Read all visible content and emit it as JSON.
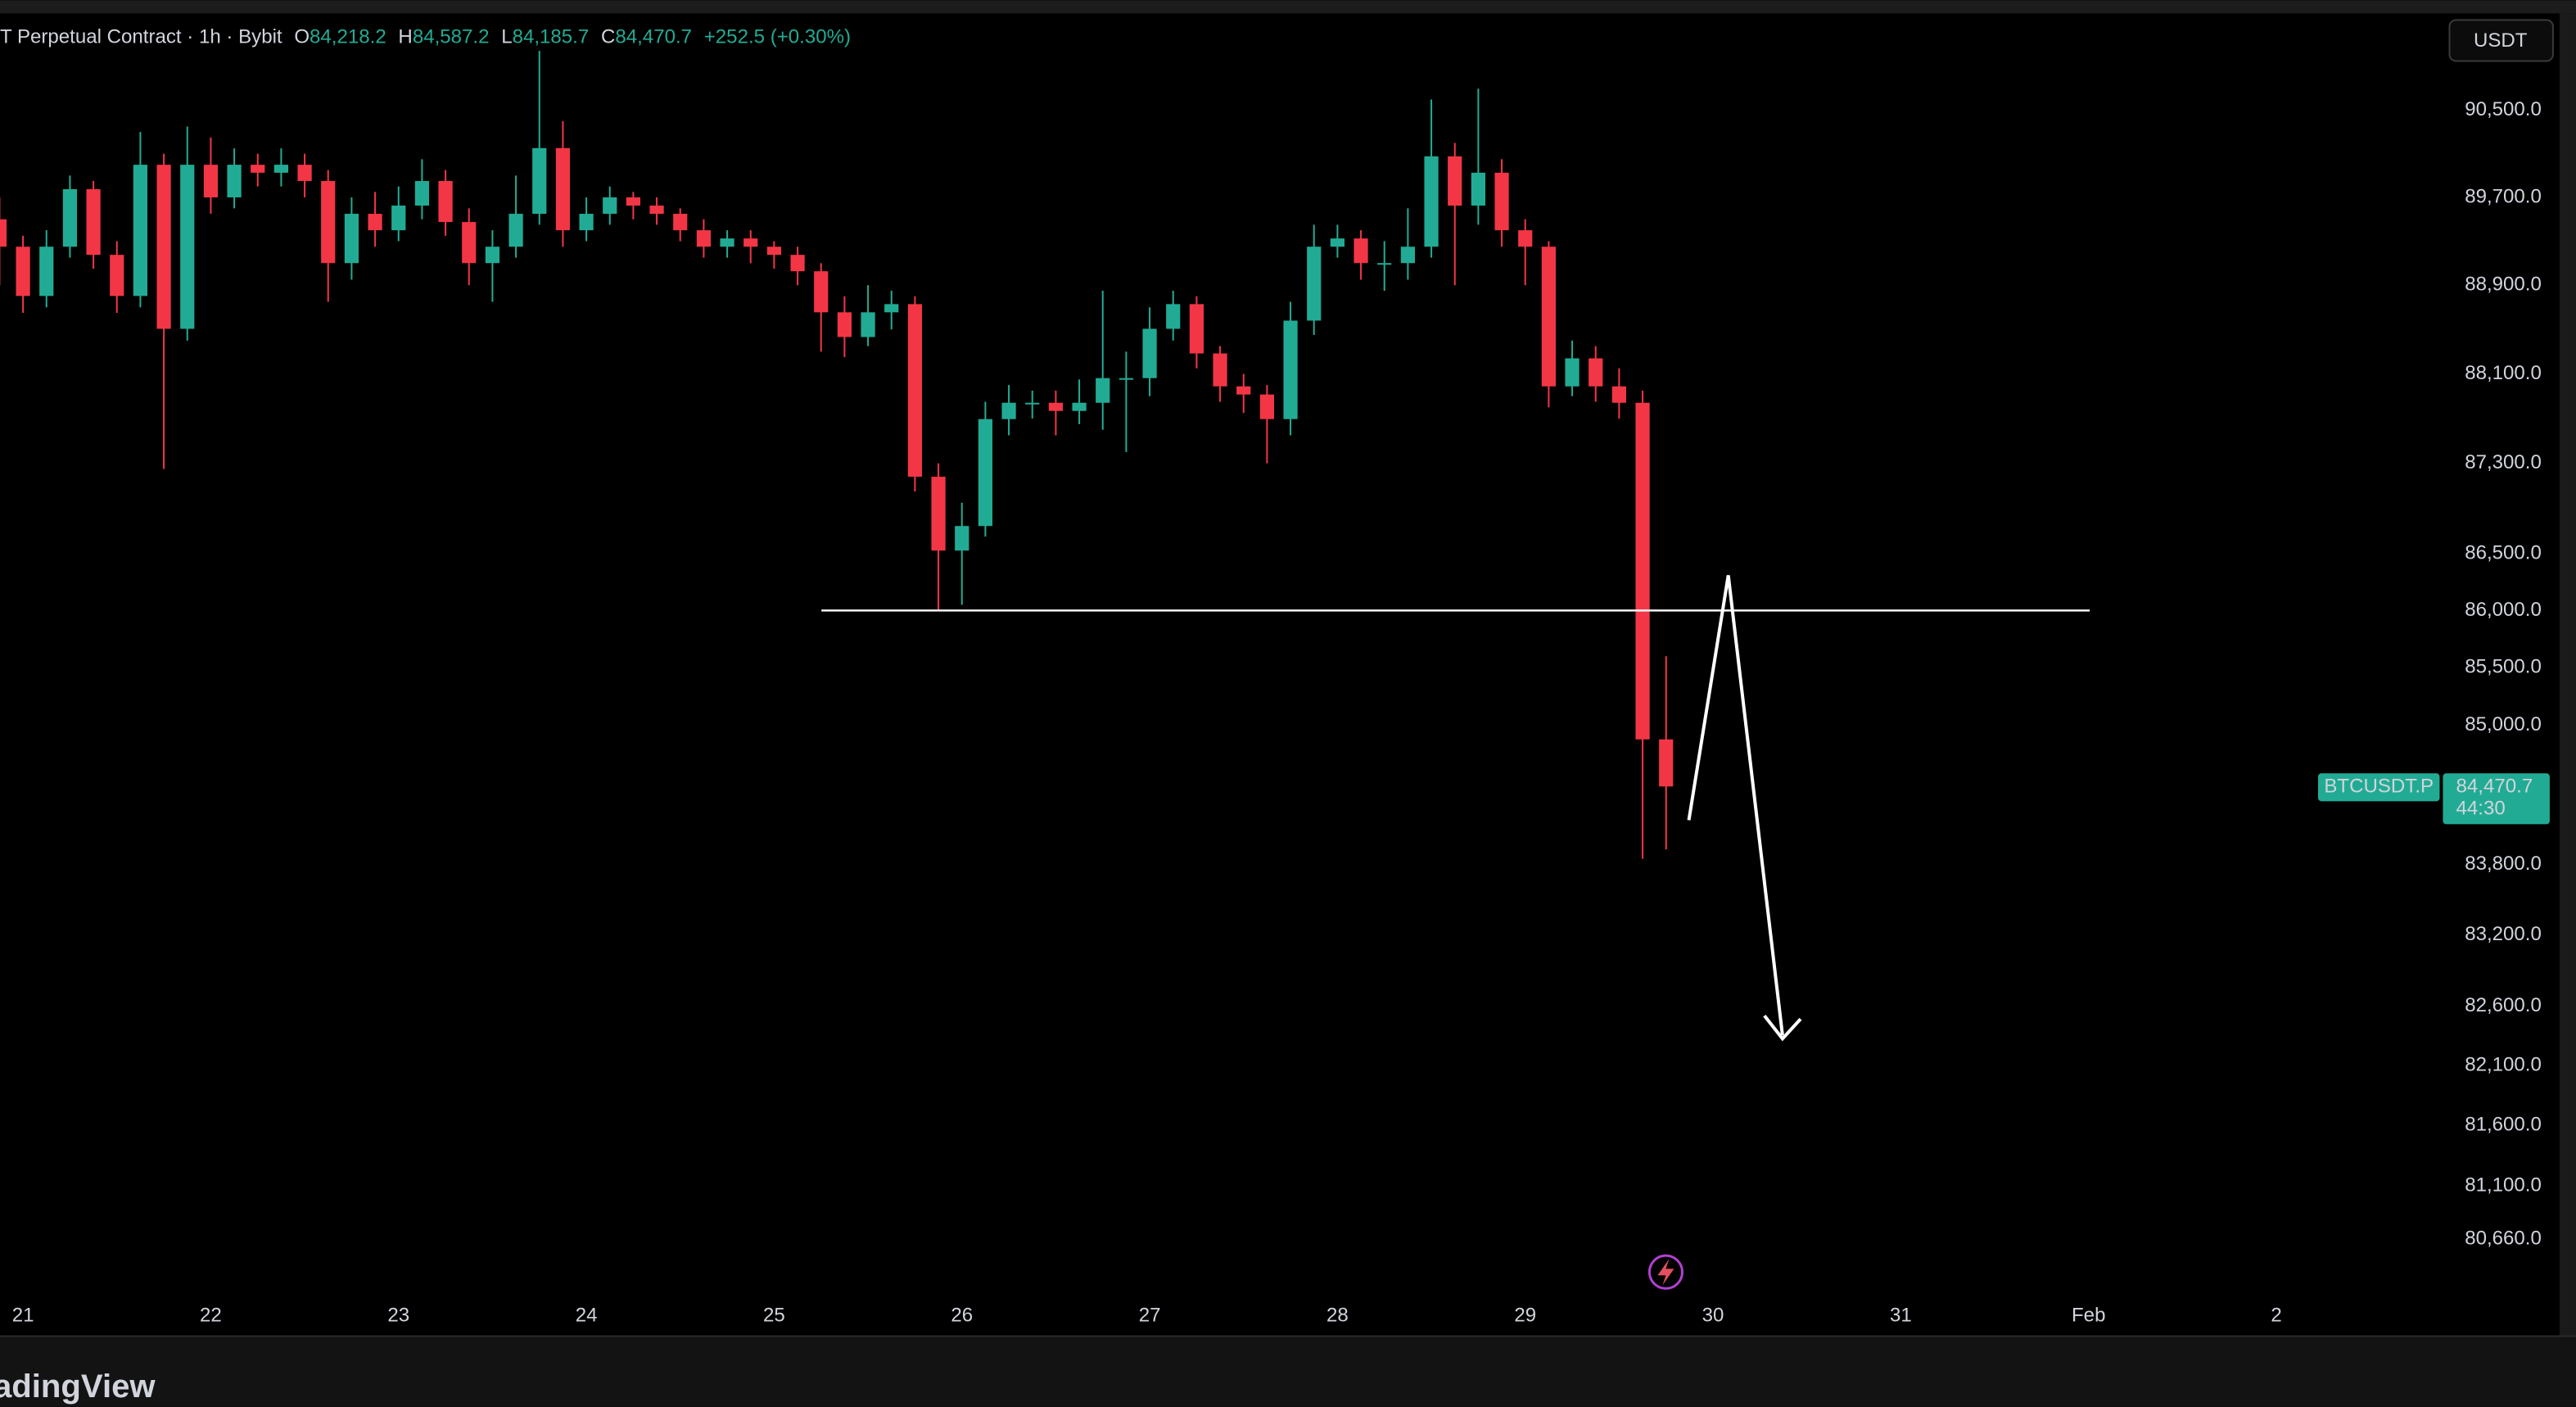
{
  "header": {
    "symbol": "T Perpetual Contract · 1h · Bybit",
    "o_label": "O",
    "o_value": "84,218.2",
    "h_label": "H",
    "h_value": "84,587.2",
    "l_label": "L",
    "l_value": "84,185.7",
    "c_label": "C",
    "c_value": "84,470.7",
    "change": "+252.5 (+0.30%)"
  },
  "toolbar": {
    "currency": "USDT"
  },
  "price_tag": {
    "symbol": "BTCUSDT.P",
    "price": "84,470.7",
    "countdown": "44:30"
  },
  "brand": "adingView",
  "chart_data": {
    "type": "candlestick",
    "log_scale": true,
    "up_color": "#22ab94",
    "down_color": "#f23645",
    "x": [
      -3,
      0,
      3,
      6,
      9,
      12,
      15,
      18,
      21,
      24,
      27,
      30,
      33,
      36,
      39,
      42,
      45,
      48,
      51,
      54,
      57,
      60,
      63,
      66,
      69,
      72,
      75,
      78,
      81,
      84,
      87,
      90,
      93,
      96,
      99,
      102,
      105,
      108,
      111,
      114,
      117,
      120,
      123,
      126,
      129,
      132,
      135,
      138,
      141,
      144,
      147,
      150,
      153,
      156,
      159,
      162,
      165,
      168,
      171,
      174,
      177,
      180,
      183,
      186,
      189,
      192,
      195,
      198,
      201,
      204,
      207,
      210
    ],
    "open": [
      89500,
      89250,
      88803,
      89250,
      89775,
      89176,
      88803,
      89999,
      88506,
      89999,
      89700,
      89999,
      89926,
      89999,
      89850,
      89101,
      89550,
      89400,
      89625,
      89850,
      89475,
      89101,
      89250,
      89550,
      90152,
      89400,
      89550,
      89700,
      89625,
      89550,
      89400,
      89250,
      89325,
      89250,
      89176,
      89027,
      88655,
      88432,
      88655,
      88729,
      87181,
      86527,
      86744,
      87695,
      87841,
      87841,
      87768,
      87841,
      88062,
      88062,
      88506,
      88729,
      88284,
      87988,
      87915,
      87695,
      88580,
      89250,
      89325,
      89101,
      89101,
      89250,
      90076,
      89625,
      89926,
      89400,
      89250,
      87988,
      88240,
      87988,
      87841,
      84877
    ],
    "high": [
      89700,
      89350,
      89400,
      89900,
      89850,
      89300,
      90300,
      90100,
      90350,
      90250,
      90150,
      90100,
      90150,
      90100,
      89950,
      89700,
      89750,
      89800,
      90050,
      89950,
      89600,
      89400,
      89900,
      91050,
      90400,
      89700,
      89800,
      89750,
      89700,
      89600,
      89500,
      89400,
      89400,
      89300,
      89250,
      89100,
      88800,
      88900,
      88850,
      88800,
      87300,
      86950,
      87850,
      88000,
      87950,
      87950,
      88050,
      88850,
      88300,
      88700,
      88850,
      88800,
      88350,
      88100,
      88000,
      88750,
      89450,
      89450,
      89400,
      89300,
      89600,
      90600,
      90200,
      90700,
      90050,
      89500,
      89300,
      88400,
      88350,
      88150,
      87950,
      85600
    ],
    "low": [
      88900,
      88650,
      88700,
      89150,
      89050,
      88650,
      88700,
      87250,
      88400,
      89550,
      89600,
      89800,
      89800,
      89700,
      88750,
      88950,
      89250,
      89300,
      89500,
      89350,
      88900,
      88750,
      89150,
      89450,
      89250,
      89300,
      89450,
      89500,
      89450,
      89300,
      89150,
      89150,
      89100,
      89050,
      88900,
      88300,
      88250,
      88350,
      88500,
      87050,
      86000,
      86050,
      86650,
      87550,
      87700,
      87550,
      87650,
      87600,
      87400,
      87900,
      88400,
      88150,
      87850,
      87750,
      87300,
      87550,
      88450,
      89150,
      88950,
      88850,
      88950,
      89150,
      88900,
      89450,
      89250,
      88900,
      87800,
      87900,
      87850,
      87700,
      83850,
      83930
    ],
    "close": [
      89250,
      88803,
      89250,
      89775,
      89176,
      88803,
      89999,
      88506,
      89999,
      89700,
      89999,
      89926,
      89999,
      89850,
      89101,
      89550,
      89400,
      89625,
      89850,
      89475,
      89101,
      89250,
      89550,
      90152,
      89400,
      89550,
      89700,
      89625,
      89550,
      89400,
      89250,
      89325,
      89250,
      89176,
      89027,
      88655,
      88432,
      88655,
      88729,
      87181,
      86527,
      86744,
      87695,
      87841,
      87841,
      87768,
      87841,
      88062,
      88062,
      88506,
      88729,
      88284,
      87988,
      87915,
      87695,
      88580,
      89250,
      89325,
      89101,
      89101,
      89250,
      90076,
      89625,
      89926,
      89400,
      89250,
      87988,
      88240,
      87988,
      87841,
      84877,
      84470.7
    ],
    "hline": 86000,
    "xlim": [
      -2.94,
      309.29
    ],
    "ylim": [
      80242,
      91399
    ],
    "xticks": [
      {
        "value": 0,
        "label": "21"
      },
      {
        "value": 24,
        "label": "22"
      },
      {
        "value": 48,
        "label": "23"
      },
      {
        "value": 72,
        "label": "24"
      },
      {
        "value": 96,
        "label": "25"
      },
      {
        "value": 120,
        "label": "26"
      },
      {
        "value": 144,
        "label": "27"
      },
      {
        "value": 168,
        "label": "28"
      },
      {
        "value": 192,
        "label": "29"
      },
      {
        "value": 216,
        "label": "30"
      },
      {
        "value": 240,
        "label": "31"
      },
      {
        "value": 264,
        "label": "Feb"
      },
      {
        "value": 288,
        "label": "2"
      }
    ],
    "yticks": [
      {
        "value": 90500,
        "label": "90,500.0"
      },
      {
        "value": 89700,
        "label": "89,700.0"
      },
      {
        "value": 88900,
        "label": "88,900.0"
      },
      {
        "value": 88100,
        "label": "88,100.0"
      },
      {
        "value": 87300,
        "label": "87,300.0"
      },
      {
        "value": 86500,
        "label": "86,500.0"
      },
      {
        "value": 86000,
        "label": "86,000.0"
      },
      {
        "value": 85500,
        "label": "85,500.0"
      },
      {
        "value": 85000,
        "label": "85,000.0"
      },
      {
        "value": 83800,
        "label": "83,800.0"
      },
      {
        "value": 83200,
        "label": "83,200.0"
      },
      {
        "value": 82600,
        "label": "82,600.0"
      },
      {
        "value": 82100,
        "label": "82,100.0"
      },
      {
        "value": 81600,
        "label": "81,600.0"
      },
      {
        "value": 81100,
        "label": "81,100.0"
      },
      {
        "value": 80660,
        "label": "80,660.0"
      }
    ]
  }
}
